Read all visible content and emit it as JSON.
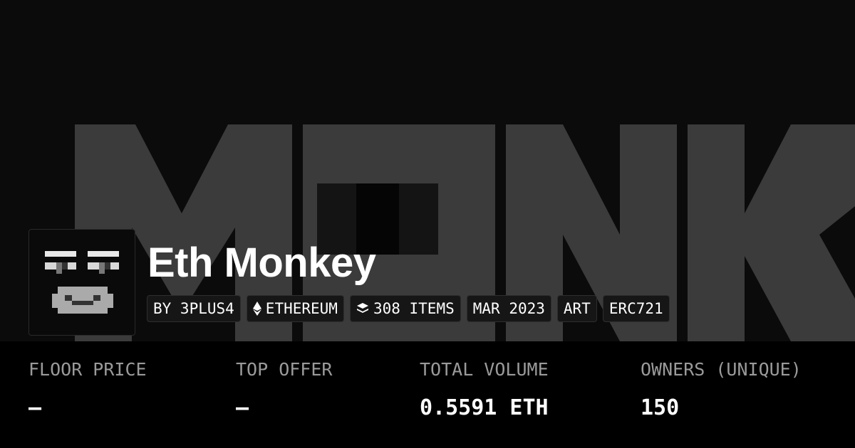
{
  "header": {
    "title": "Eth Monkey"
  },
  "tags": [
    "BY 3PLUS4",
    "ETHEREUM",
    "308 ITEMS",
    "MAR 2023",
    "ART",
    "ERC721"
  ],
  "stats": [
    {
      "label": "FLOOR PRICE",
      "value": "—"
    },
    {
      "label": "TOP OFFER",
      "value": "—"
    },
    {
      "label": "TOTAL VOLUME",
      "value": "0.5591 ETH"
    },
    {
      "label": "OWNERS (UNIQUE)",
      "value": "150"
    }
  ]
}
